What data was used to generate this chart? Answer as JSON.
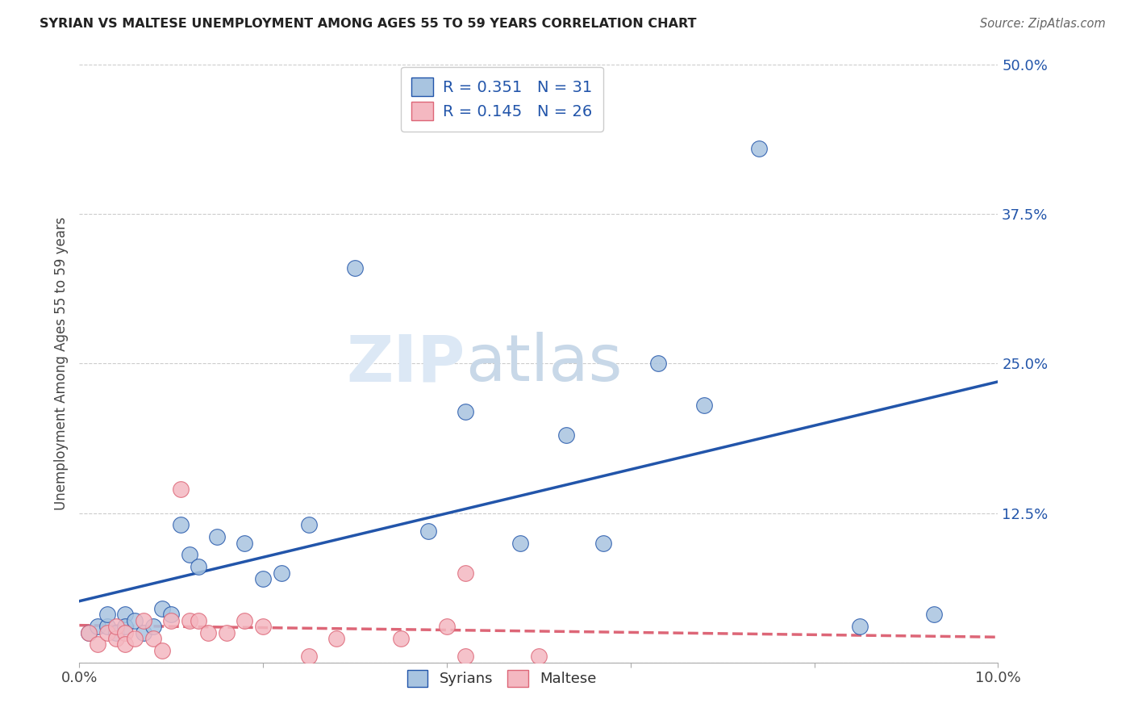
{
  "title": "SYRIAN VS MALTESE UNEMPLOYMENT AMONG AGES 55 TO 59 YEARS CORRELATION CHART",
  "source": "Source: ZipAtlas.com",
  "ylabel": "Unemployment Among Ages 55 to 59 years",
  "xlim": [
    0.0,
    0.1
  ],
  "ylim": [
    0.0,
    0.5
  ],
  "xticks": [
    0.0,
    0.02,
    0.04,
    0.06,
    0.08,
    0.1
  ],
  "xticklabels": [
    "0.0%",
    "",
    "",
    "",
    "",
    "10.0%"
  ],
  "yticks": [
    0.0,
    0.125,
    0.25,
    0.375,
    0.5
  ],
  "yticklabels": [
    "",
    "12.5%",
    "25.0%",
    "37.5%",
    "50.0%"
  ],
  "legend_labels": [
    "Syrians",
    "Maltese"
  ],
  "syrians_R": "0.351",
  "syrians_N": "31",
  "maltese_R": "0.145",
  "maltese_N": "26",
  "syrian_color": "#a8c4e0",
  "maltese_color": "#f4b8c1",
  "syrian_line_color": "#2255aa",
  "maltese_line_color": "#dd6677",
  "watermark_zip": "ZIP",
  "watermark_atlas": "atlas",
  "background_color": "#ffffff",
  "grid_color": "#cccccc",
  "syrians_x": [
    0.001,
    0.002,
    0.003,
    0.003,
    0.004,
    0.005,
    0.005,
    0.006,
    0.007,
    0.008,
    0.009,
    0.01,
    0.011,
    0.012,
    0.013,
    0.015,
    0.018,
    0.02,
    0.022,
    0.025,
    0.03,
    0.038,
    0.042,
    0.048,
    0.053,
    0.057,
    0.063,
    0.068,
    0.074,
    0.085,
    0.093
  ],
  "syrians_y": [
    0.025,
    0.03,
    0.03,
    0.04,
    0.025,
    0.04,
    0.03,
    0.035,
    0.025,
    0.03,
    0.045,
    0.04,
    0.115,
    0.09,
    0.08,
    0.105,
    0.1,
    0.07,
    0.075,
    0.115,
    0.33,
    0.11,
    0.21,
    0.1,
    0.19,
    0.1,
    0.25,
    0.215,
    0.43,
    0.03,
    0.04
  ],
  "maltese_x": [
    0.001,
    0.002,
    0.003,
    0.004,
    0.004,
    0.005,
    0.005,
    0.006,
    0.007,
    0.008,
    0.009,
    0.01,
    0.011,
    0.012,
    0.013,
    0.014,
    0.016,
    0.018,
    0.02,
    0.025,
    0.028,
    0.035,
    0.04,
    0.042,
    0.05,
    0.042
  ],
  "maltese_y": [
    0.025,
    0.015,
    0.025,
    0.02,
    0.03,
    0.025,
    0.015,
    0.02,
    0.035,
    0.02,
    0.01,
    0.035,
    0.145,
    0.035,
    0.035,
    0.025,
    0.025,
    0.035,
    0.03,
    0.005,
    0.02,
    0.02,
    0.03,
    0.005,
    0.005,
    0.075
  ]
}
